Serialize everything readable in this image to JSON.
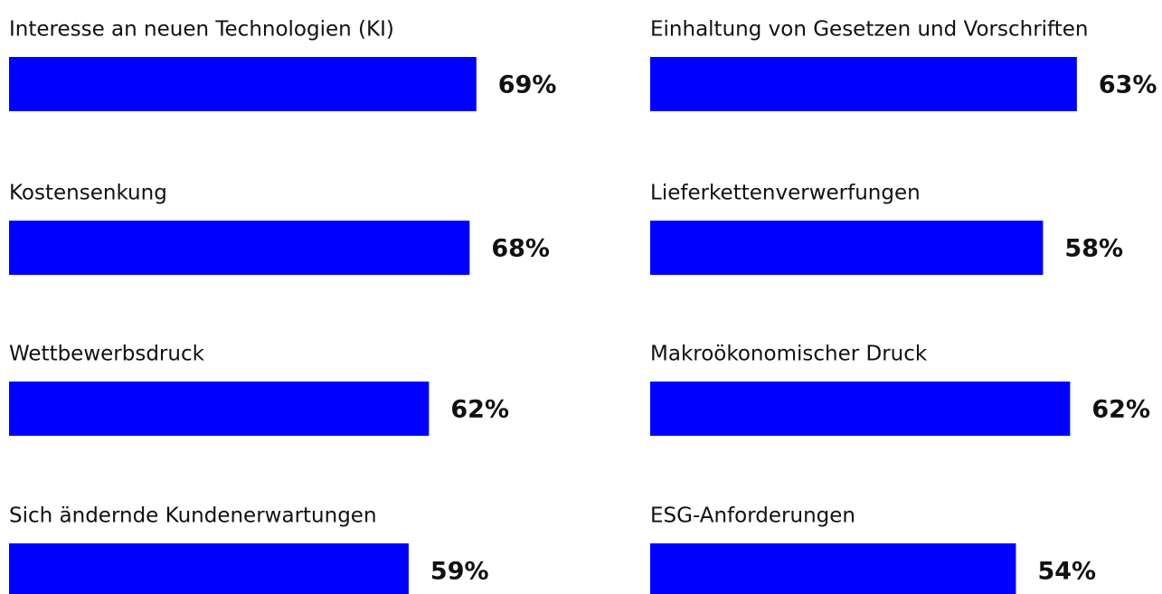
{
  "chart_data": [
    {
      "type": "bar",
      "orientation": "horizontal",
      "color": "#0000ff",
      "categories": [
        "Interesse an neuen Technologien (KI)",
        "Kostensenkung",
        "Wettbewerbsdruck",
        "Sich ändernde Kundenerwartungen"
      ],
      "values": [
        69,
        68,
        62,
        59
      ],
      "value_labels": [
        "69%",
        "68%",
        "62%",
        "59%"
      ]
    },
    {
      "type": "bar",
      "orientation": "horizontal",
      "color": "#0000ff",
      "categories": [
        "Einhaltung von Gesetzen und Vorschriften",
        "Lieferkettenverwerfungen",
        "Makroökonomischer Druck",
        "ESG-Anforderungen"
      ],
      "values": [
        63,
        58,
        62,
        54
      ],
      "value_labels": [
        "63%",
        "58%",
        "62%",
        "54%"
      ]
    }
  ]
}
